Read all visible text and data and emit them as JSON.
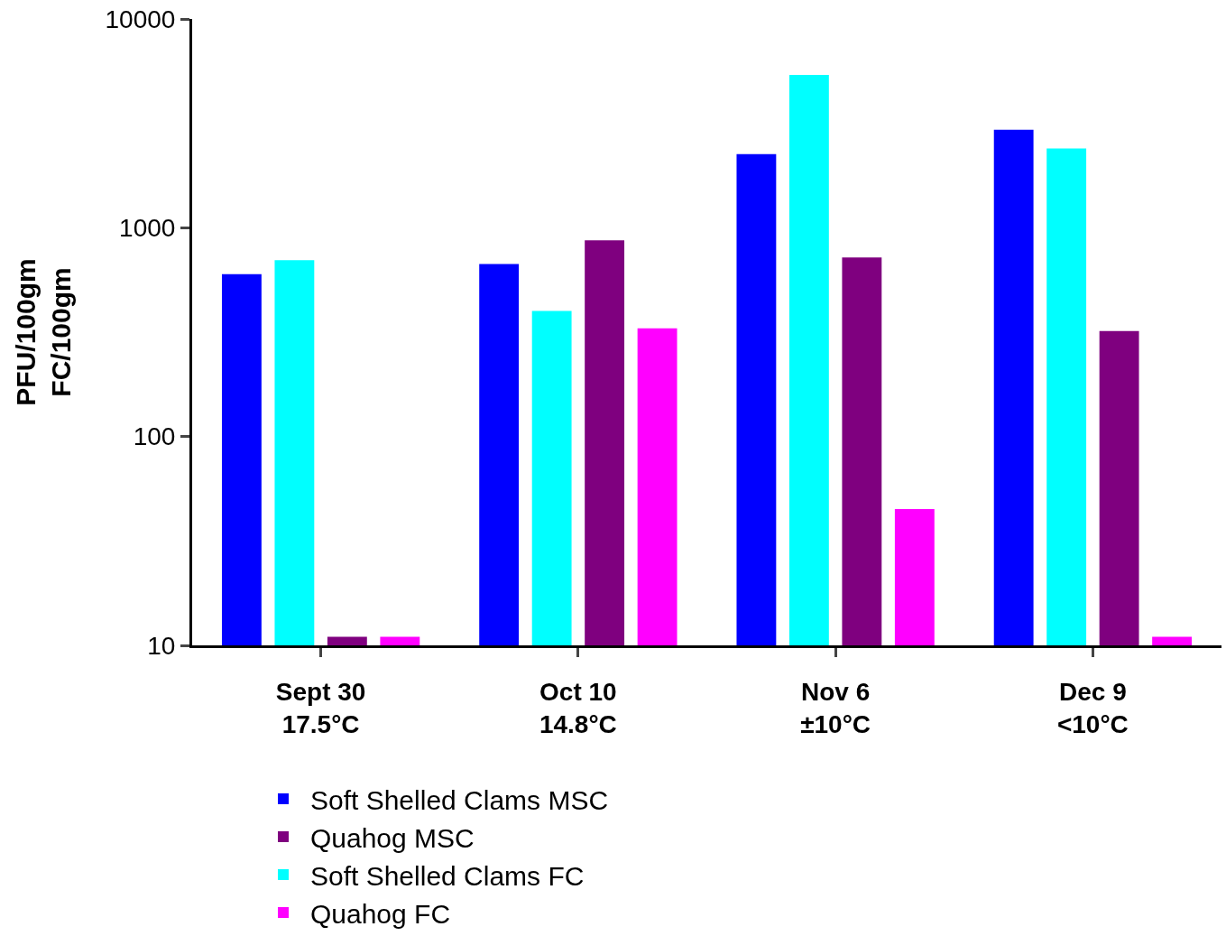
{
  "chart_data": {
    "type": "bar",
    "ylabel": "PFU/100gm\nFC/100gm",
    "categories": [
      "Sept 30\n17.5°C",
      "Oct 10\n14.8°C",
      "Nov 6\n±10°C",
      "Dec 9\n<10°C"
    ],
    "series": [
      {
        "name": "Soft Shelled Clams MSC",
        "color": "#0000ff",
        "values": [
          600,
          670,
          2250,
          2950
        ]
      },
      {
        "name": "Soft Shelled Clams FC",
        "color": "#00ffff",
        "values": [
          700,
          400,
          5400,
          2400
        ]
      },
      {
        "name": "Quahog MSC",
        "color": "#7f007f",
        "values": [
          11,
          870,
          720,
          320
        ]
      },
      {
        "name": "Quahog FC",
        "color": "#ff00ff",
        "values": [
          11,
          330,
          45,
          11
        ]
      }
    ],
    "log": true,
    "ylim": [
      10,
      10000
    ],
    "yticks": [
      10,
      100,
      1000,
      10000
    ],
    "legend": "bottom"
  }
}
